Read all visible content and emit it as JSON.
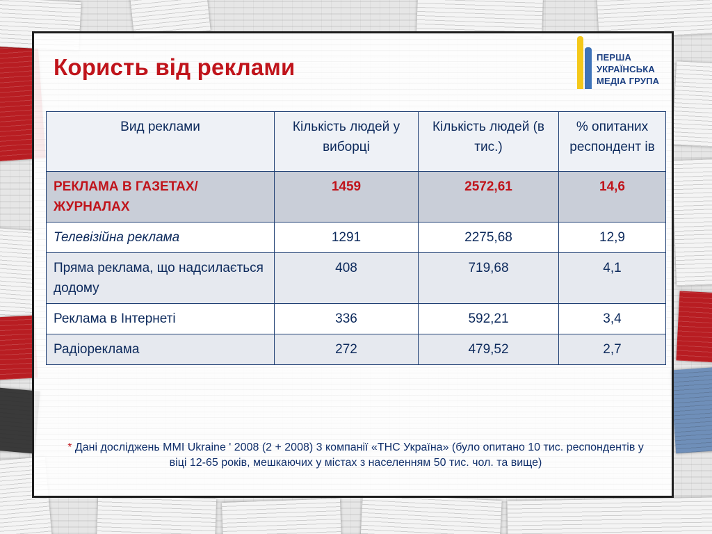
{
  "title": "Користь від реклами",
  "logo": {
    "line1": "ПЕРША",
    "line2": "УКРАЇНСЬКА",
    "line3": "МЕДІА ГРУПА"
  },
  "table": {
    "headers": [
      "Вид реклами",
      "Кількість людей у виборці",
      "Кількість людей (в тис.)",
      "% опитаних респондент ів"
    ],
    "rows": [
      {
        "type": "РЕКЛАМА В ГАЗЕТАХ/ЖУРНАЛАХ",
        "sample": "1459",
        "thousands": "2572,61",
        "percent": "14,6"
      },
      {
        "type": "Телевізійна реклама",
        "sample": "1291",
        "thousands": "2275,68",
        "percent": "12,9"
      },
      {
        "type": "Пряма реклама, що надсилається додому",
        "sample": "408",
        "thousands": "719,68",
        "percent": "4,1"
      },
      {
        "type": "Реклама в Інтернеті",
        "sample": "336",
        "thousands": "592,21",
        "percent": "3,4"
      },
      {
        "type": "Радіореклама",
        "sample": "272",
        "thousands": "479,52",
        "percent": "2,7"
      }
    ]
  },
  "footnote": {
    "star": "*",
    "text": "Дані досліджень MMI Ukraine ' 2008 (2 + 2008) 3 компанії «ТНС Україна» (було опитано 10 тис. респондентів у віці 12-65 років, мешкаючих у містах з населенням 50 тис. чол. та вище)"
  },
  "colors": {
    "title": "#c0141b",
    "table_text": "#0d2a5c",
    "highlight_text": "#c0141b",
    "logo_blue": "#3e73b9",
    "logo_yellow": "#f4c81a"
  }
}
